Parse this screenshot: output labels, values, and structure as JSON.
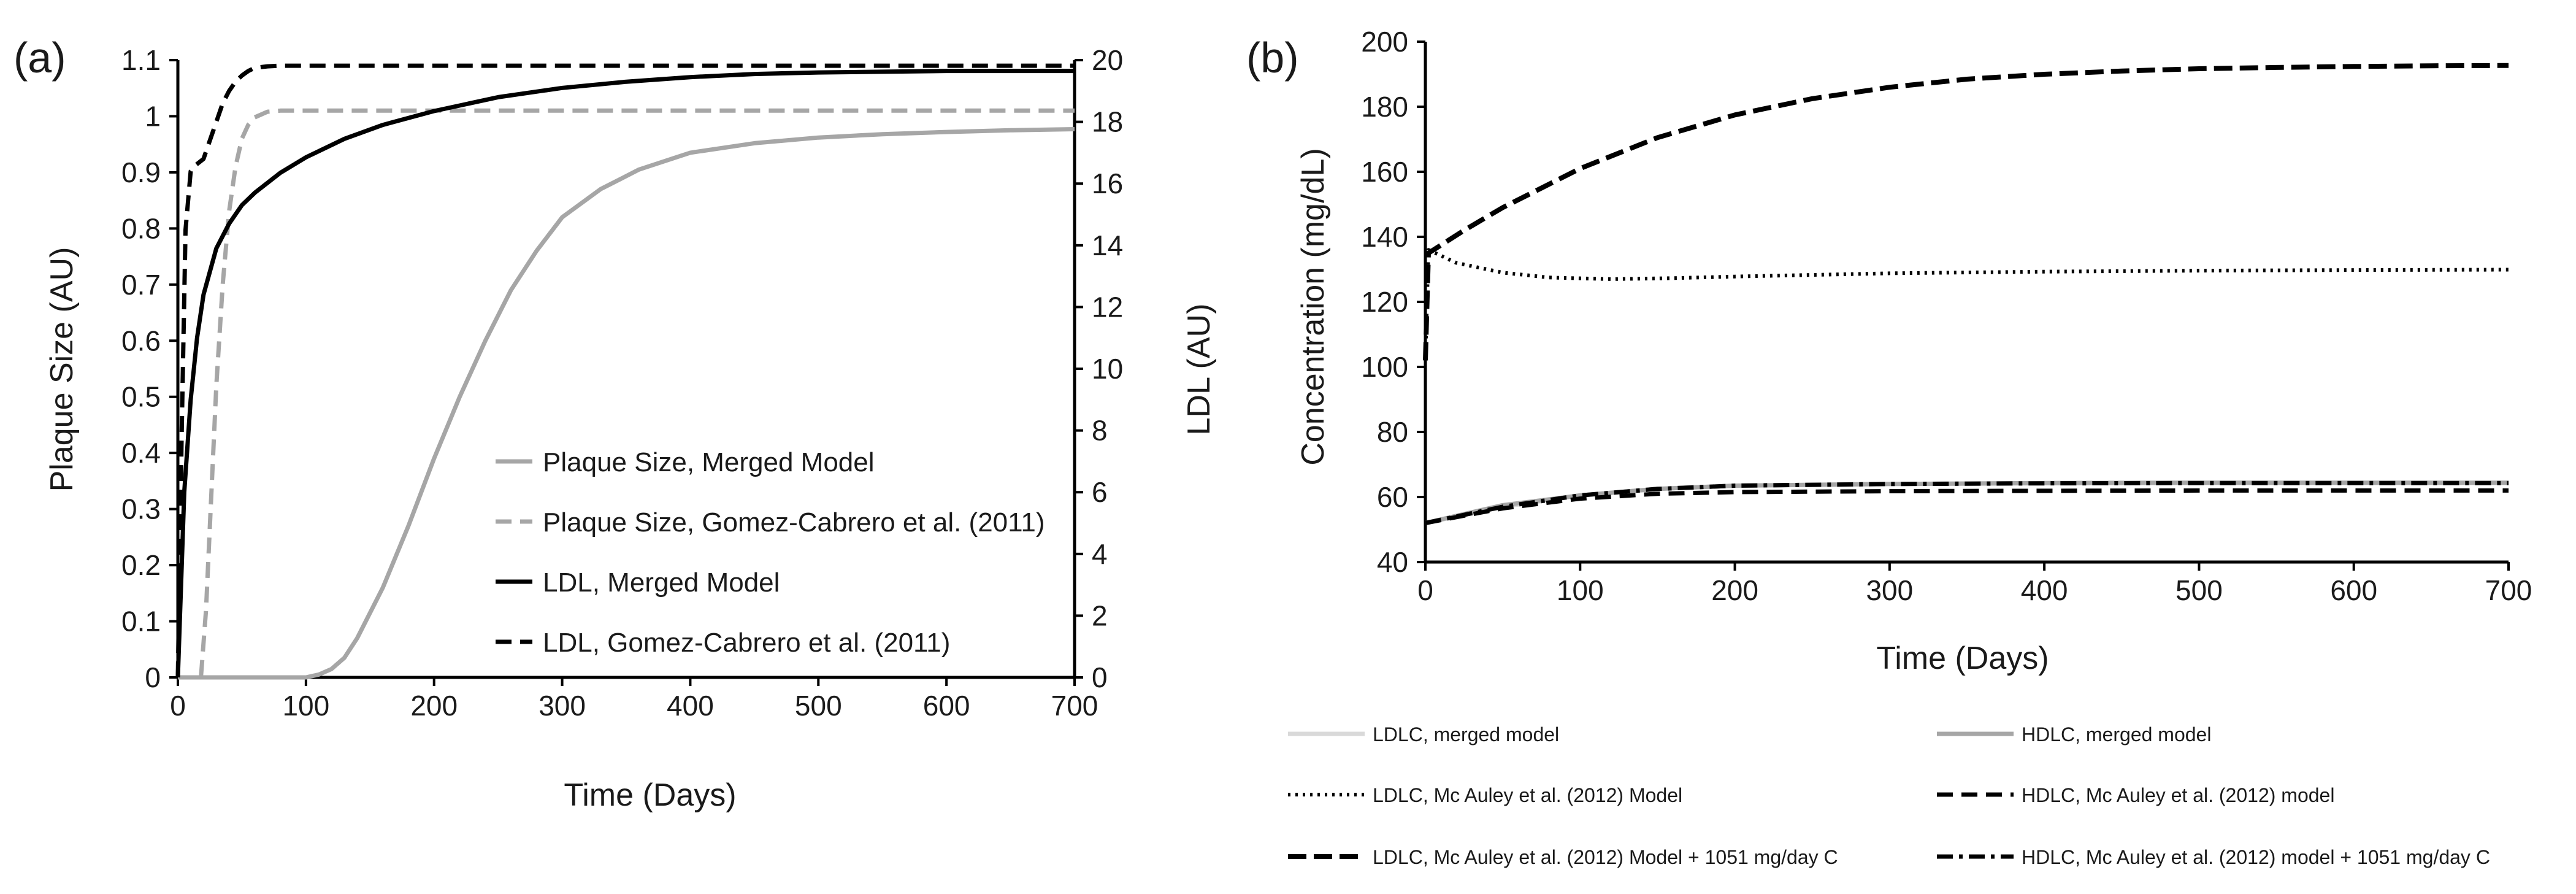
{
  "chart_data": [
    {
      "panel": "(a)",
      "type": "line",
      "xlabel": "Time (Days)",
      "ylabel": "Plaque Size (AU)",
      "y2label": "LDL (AU)",
      "xlim": [
        0,
        700
      ],
      "ylim": [
        0,
        1.1
      ],
      "y2lim": [
        0,
        20
      ],
      "xticks": [
        "0",
        "100",
        "200",
        "300",
        "400",
        "500",
        "600",
        "700"
      ],
      "yticks": [
        "0",
        "0.1",
        "0.2",
        "0.3",
        "0.4",
        "0.5",
        "0.6",
        "0.7",
        "0.8",
        "0.9",
        "1",
        "1.1"
      ],
      "y2ticks": [
        "0",
        "2",
        "4",
        "6",
        "8",
        "10",
        "12",
        "14",
        "16",
        "18",
        "20"
      ],
      "legend_position": "lower-right",
      "series": [
        {
          "name": "Plaque Size, Merged Model",
          "axis": "left",
          "color": "#a6a6a6",
          "dash": "solid",
          "x": [
            0,
            100,
            110,
            120,
            130,
            140,
            160,
            180,
            200,
            220,
            240,
            260,
            280,
            300,
            330,
            360,
            400,
            450,
            500,
            550,
            600,
            650,
            700
          ],
          "y": [
            0,
            0,
            0.005,
            0.015,
            0.035,
            0.07,
            0.16,
            0.27,
            0.39,
            0.5,
            0.6,
            0.69,
            0.76,
            0.82,
            0.87,
            0.905,
            0.935,
            0.952,
            0.962,
            0.968,
            0.972,
            0.975,
            0.977
          ]
        },
        {
          "name": "Plaque Size, Gomez-Cabrero et al. (2011)",
          "axis": "left",
          "color": "#a6a6a6",
          "dash": "dashed",
          "x": [
            0,
            18,
            22,
            26,
            30,
            35,
            40,
            45,
            50,
            55,
            60,
            70,
            80,
            100,
            200,
            400,
            700
          ],
          "y": [
            0,
            0,
            0.12,
            0.32,
            0.52,
            0.7,
            0.83,
            0.91,
            0.96,
            0.985,
            0.998,
            1.008,
            1.01,
            1.01,
            1.01,
            1.01,
            1.01
          ]
        },
        {
          "name": "LDL, Merged Model",
          "axis": "right",
          "color": "#000000",
          "dash": "solid",
          "x": [
            0,
            5,
            10,
            15,
            20,
            30,
            40,
            50,
            60,
            80,
            100,
            130,
            160,
            200,
            250,
            300,
            350,
            400,
            450,
            500,
            600,
            700
          ],
          "y": [
            0,
            6.0,
            9.0,
            11.0,
            12.4,
            13.9,
            14.7,
            15.3,
            15.7,
            16.35,
            16.85,
            17.45,
            17.9,
            18.35,
            18.8,
            19.1,
            19.3,
            19.45,
            19.55,
            19.6,
            19.65,
            19.65
          ]
        },
        {
          "name": "LDL, Gomez-Cabrero et al. (2011)",
          "axis": "right",
          "color": "#000000",
          "dash": "dashed",
          "x": [
            0,
            3,
            6,
            10,
            14,
            20,
            25,
            30,
            35,
            40,
            45,
            50,
            55,
            60,
            70,
            80,
            100,
            200,
            400,
            700
          ],
          "y": [
            0,
            8.0,
            14.5,
            16.4,
            16.6,
            16.8,
            17.4,
            18.0,
            18.6,
            19.0,
            19.3,
            19.5,
            19.65,
            19.75,
            19.8,
            19.82,
            19.82,
            19.82,
            19.82,
            19.82
          ]
        }
      ]
    },
    {
      "panel": "(b)",
      "type": "line",
      "xlabel": "Time (Days)",
      "ylabel": "Concentration (mg/dL)",
      "xlim": [
        0,
        700
      ],
      "ylim": [
        40,
        200
      ],
      "xticks": [
        "0",
        "100",
        "200",
        "300",
        "400",
        "500",
        "600",
        "700"
      ],
      "yticks": [
        "40",
        "60",
        "80",
        "100",
        "120",
        "140",
        "160",
        "180",
        "200"
      ],
      "legend_position": "bottom",
      "series": [
        {
          "name": "LDLC, merged model",
          "color": "#d9d9d9",
          "dash": "solid",
          "x": [
            0,
            50,
            100,
            150,
            200,
            300,
            400,
            500,
            600,
            700
          ],
          "y": [
            52,
            57,
            60.5,
            62.5,
            63.5,
            64,
            64.2,
            64.3,
            64.3,
            64.3
          ]
        },
        {
          "name": "HDLC, merged model",
          "color": "#a6a6a6",
          "dash": "solid",
          "x": [
            0,
            50,
            100,
            150,
            200,
            300,
            400,
            500,
            600,
            700
          ],
          "y": [
            52,
            57.5,
            60.5,
            62.5,
            63.5,
            64,
            64.3,
            64.4,
            64.4,
            64.4
          ]
        },
        {
          "name": "LDLC, Mc Auley et al. (2012) Model",
          "color": "#000000",
          "dash": "dotted",
          "x": [
            0,
            2,
            20,
            50,
            80,
            120,
            160,
            200,
            300,
            400,
            500,
            600,
            700
          ],
          "y": [
            102,
            136,
            132,
            129,
            127.5,
            127,
            127.3,
            127.8,
            128.8,
            129.3,
            129.6,
            129.8,
            129.9
          ]
        },
        {
          "name": "HDLC, Mc Auley et al. (2012) model",
          "color": "#000000",
          "dash": "dashed",
          "x": [
            0,
            50,
            100,
            150,
            200,
            300,
            400,
            500,
            600,
            700
          ],
          "y": [
            52,
            56.5,
            59.5,
            61,
            61.5,
            61.8,
            61.9,
            62,
            62,
            62
          ]
        },
        {
          "name": "LDLC, Mc Auley et al. (2012) Model + 1051 mg/day C",
          "color": "#000000",
          "dash": "dashed-heavy",
          "x": [
            0,
            2,
            25,
            50,
            75,
            100,
            150,
            200,
            250,
            300,
            350,
            400,
            450,
            500,
            550,
            600,
            650,
            700
          ],
          "y": [
            102,
            135,
            142,
            149,
            155,
            161,
            170.5,
            177.5,
            182.5,
            186,
            188.5,
            190,
            191,
            191.7,
            192.1,
            192.4,
            192.6,
            192.7
          ]
        },
        {
          "name": "HDLC, Mc Auley et al. (2012) model + 1051 mg/day C",
          "color": "#000000",
          "dash": "dashdot",
          "x": [
            0,
            50,
            100,
            150,
            200,
            300,
            400,
            500,
            600,
            700
          ],
          "y": [
            52,
            57,
            60.5,
            62.5,
            63.5,
            64,
            64.2,
            64.3,
            64.3,
            64.3
          ]
        }
      ]
    }
  ]
}
